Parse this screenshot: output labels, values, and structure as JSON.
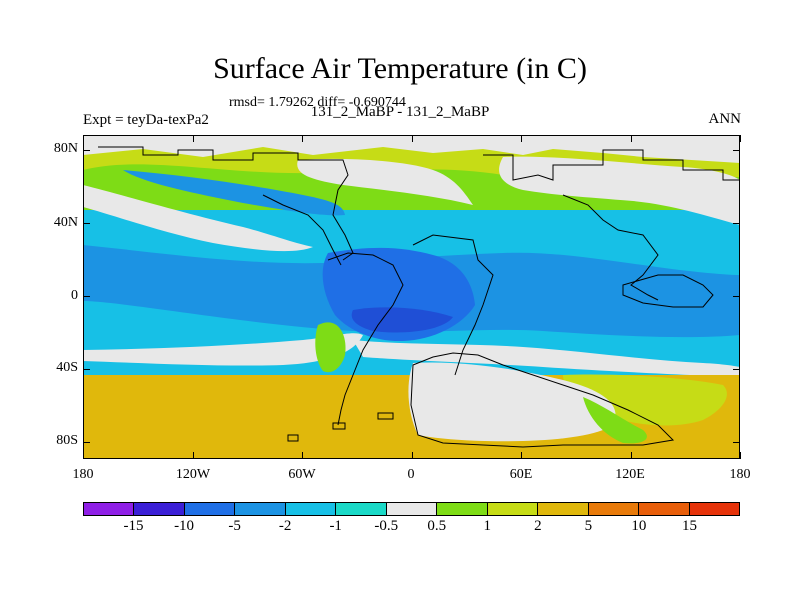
{
  "title": "Surface Air Temperature (in C)",
  "stats": "rmsd= 1.79262 diff= -0.690744",
  "experiment": "Expt = teyDa-texPa2",
  "cases": "131_2_MaBP - 131_2_MaBP",
  "season": "ANN",
  "y_ticks": [
    "80N",
    "40N",
    "0",
    "40S",
    "80S"
  ],
  "x_ticks": [
    "180",
    "120W",
    "60W",
    "0",
    "60E",
    "120E",
    "180"
  ],
  "colorbar": {
    "labels": [
      "-15",
      "-10",
      "-5",
      "-2",
      "-1",
      "-0.5",
      "0.5",
      "1",
      "2",
      "5",
      "10",
      "15"
    ],
    "colors": [
      "#8f1fe6",
      "#3b1fd6",
      "#1f6fe6",
      "#1c93e3",
      "#17c0e6",
      "#1ad9c7",
      "#e8e8e8",
      "#7edc16",
      "#c6dc16",
      "#e0b80c",
      "#e87a0a",
      "#e85e0a",
      "#e6330a"
    ]
  }
}
